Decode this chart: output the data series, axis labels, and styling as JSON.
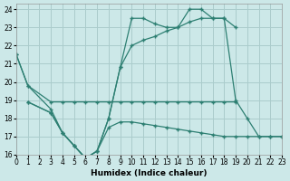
{
  "xlabel": "Humidex (Indice chaleur)",
  "bg_color": "#cce8e8",
  "grid_color": "#aacccc",
  "line_color": "#2d7f72",
  "xlim": [
    0,
    23
  ],
  "ylim": [
    16,
    24.3
  ],
  "xticks": [
    0,
    1,
    2,
    3,
    4,
    5,
    6,
    7,
    8,
    9,
    10,
    11,
    12,
    13,
    14,
    15,
    16,
    17,
    18,
    19,
    20,
    21,
    22,
    23
  ],
  "yticks": [
    16,
    17,
    18,
    19,
    20,
    21,
    22,
    23,
    24
  ],
  "line1_x": [
    0,
    1,
    3,
    4,
    5,
    6,
    7,
    8,
    9,
    10,
    11,
    12,
    13,
    14,
    15,
    16,
    17,
    18,
    19
  ],
  "line1_y": [
    21.5,
    19.8,
    18.9,
    18.9,
    18.9,
    18.9,
    18.9,
    18.9,
    18.9,
    18.9,
    18.9,
    18.9,
    18.9,
    18.9,
    18.9,
    18.9,
    18.9,
    18.9,
    18.9
  ],
  "line2_x": [
    0,
    1,
    3,
    4,
    5,
    6,
    7,
    8,
    9,
    10,
    11,
    12,
    13,
    14,
    15,
    16,
    17,
    18,
    19
  ],
  "line2_y": [
    21.5,
    19.8,
    18.5,
    17.2,
    16.5,
    15.8,
    16.2,
    18.0,
    20.8,
    23.5,
    23.5,
    23.2,
    23.0,
    23.0,
    24.0,
    24.0,
    23.5,
    23.5,
    23.0
  ],
  "line3_x": [
    1,
    3,
    4,
    5,
    6,
    7,
    8,
    9,
    10,
    11,
    12,
    13,
    14,
    15,
    16,
    17,
    18,
    19,
    20,
    21,
    22,
    23
  ],
  "line3_y": [
    18.9,
    18.3,
    17.2,
    16.5,
    15.8,
    16.2,
    18.0,
    20.8,
    22.0,
    22.3,
    22.5,
    22.8,
    23.0,
    23.3,
    23.5,
    23.5,
    23.5,
    19.0,
    18.0,
    17.0,
    17.0,
    17.0
  ],
  "line4_x": [
    1,
    3,
    4,
    5,
    6,
    7,
    8,
    9,
    10,
    11,
    12,
    13,
    14,
    15,
    16,
    17,
    18,
    19,
    20,
    21,
    22,
    23
  ],
  "line4_y": [
    18.9,
    18.3,
    17.2,
    16.5,
    15.8,
    16.2,
    17.5,
    17.8,
    17.8,
    17.7,
    17.6,
    17.5,
    17.4,
    17.3,
    17.2,
    17.1,
    17.0,
    17.0,
    17.0,
    17.0,
    17.0,
    17.0
  ]
}
